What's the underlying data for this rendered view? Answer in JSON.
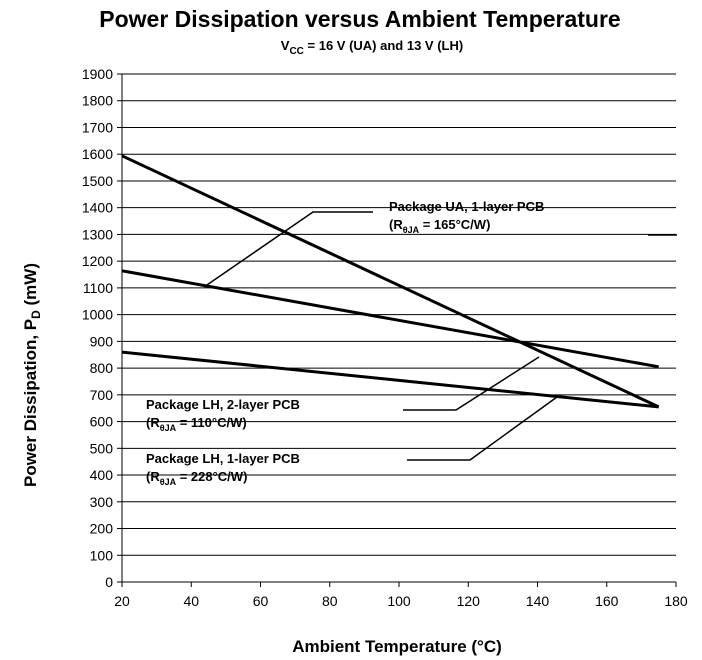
{
  "chart_data": {
    "type": "line",
    "title": "Power Dissipation versus Ambient Temperature",
    "subtitle": {
      "pre": "V",
      "sub": "CC",
      "post": " = 16 V (UA) and 13 V (LH)"
    },
    "xlabel": "Ambient Temperature (°C)",
    "ylabel": {
      "pre": "Power Dissipation, P",
      "sub": "D",
      "post": " (mW)"
    },
    "xlim": [
      20,
      180
    ],
    "ylim": [
      0,
      1900
    ],
    "xticks": [
      20,
      40,
      60,
      80,
      100,
      120,
      140,
      160,
      180
    ],
    "yticks": [
      0,
      100,
      200,
      300,
      400,
      500,
      600,
      700,
      800,
      900,
      1000,
      1100,
      1200,
      1300,
      1400,
      1500,
      1600,
      1700,
      1800,
      1900
    ],
    "grid": "horizontal",
    "series": [
      {
        "x": [
          20,
          175
        ],
        "y": [
          1594,
          655
        ]
      },
      {
        "x": [
          20,
          175
        ],
        "y": [
          1164,
          805
        ]
      },
      {
        "x": [
          20,
          175
        ],
        "y": [
          860,
          655
        ]
      }
    ],
    "annotations": [
      {
        "lines": [
          {
            "pre": "Package UA, 1-layer PCB"
          },
          {
            "pre": "(R",
            "sub": "θJA",
            "post": " = 165°C/W)"
          }
        ]
      },
      {
        "lines": [
          {
            "pre": "Package LH, 2-layer PCB"
          },
          {
            "pre": "(R",
            "sub": "θJA",
            "post": " = 110°C/W)"
          }
        ]
      },
      {
        "lines": [
          {
            "pre": "Package LH, 1-layer PCB"
          },
          {
            "pre": "(R",
            "sub": "θJA",
            "post": " = 228°C/W)"
          }
        ]
      }
    ]
  }
}
